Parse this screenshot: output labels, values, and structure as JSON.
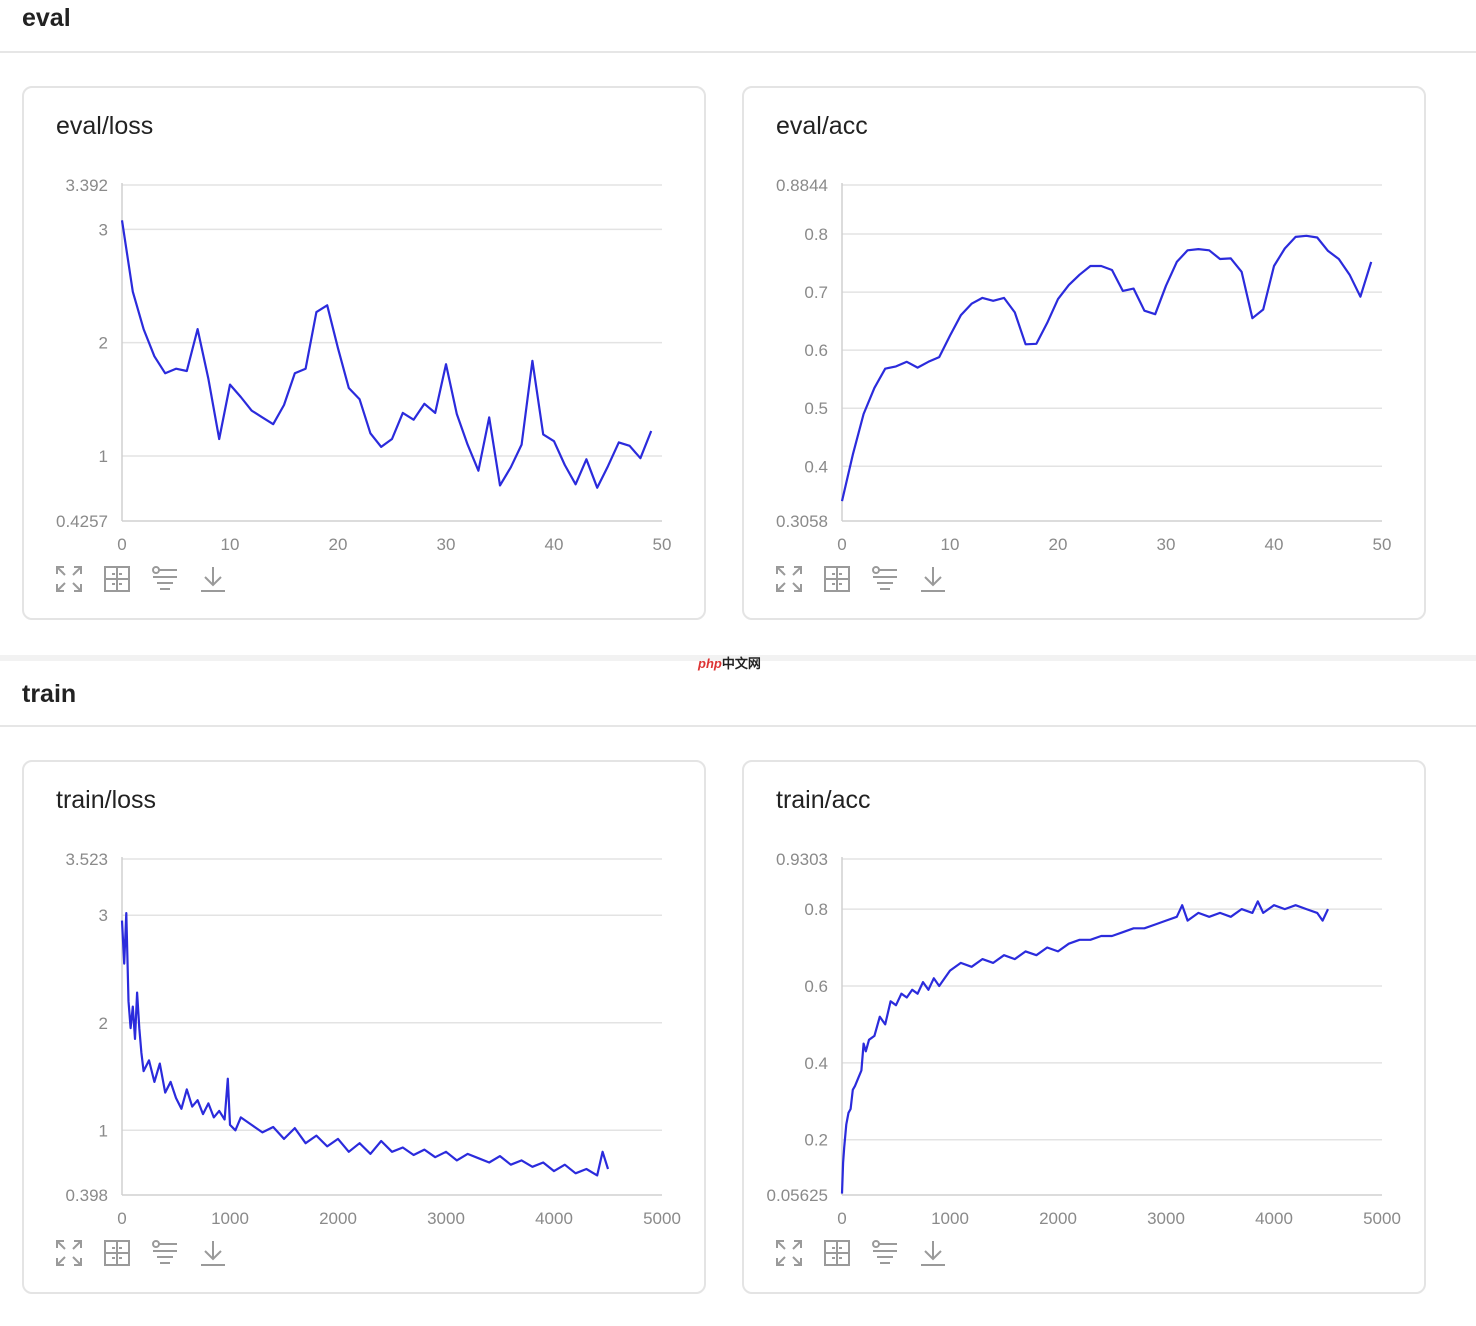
{
  "sections": [
    {
      "title": "eval"
    },
    {
      "title": "train"
    }
  ],
  "watermark": {
    "brand": "php",
    "suffix": "中文网"
  },
  "toolbar_icons": [
    "fullscreen-icon",
    "fit-view-icon",
    "filter-icon",
    "download-icon"
  ],
  "colors": {
    "line": "#2b2bdc",
    "grid": "#e3e3e3",
    "axis": "#d0d0d0",
    "tick": "#8a8a8a"
  },
  "chart_data": [
    {
      "id": "eval-loss",
      "type": "line",
      "title": "eval/loss",
      "xlim": [
        0,
        50
      ],
      "ylim": [
        0.4257,
        3.392
      ],
      "xticks": [
        0,
        10,
        20,
        30,
        40,
        50
      ],
      "yticks": [
        {
          "value": 3.392,
          "label": "3.392"
        },
        {
          "value": 3,
          "label": "3"
        },
        {
          "value": 2,
          "label": "2"
        },
        {
          "value": 1,
          "label": "1"
        },
        {
          "value": 0.4257,
          "label": "0.4257"
        }
      ],
      "series": [
        {
          "name": "eval/loss",
          "x": [
            0,
            1,
            2,
            3,
            4,
            5,
            6,
            7,
            8,
            9,
            10,
            11,
            12,
            13,
            14,
            15,
            16,
            17,
            18,
            19,
            20,
            21,
            22,
            23,
            24,
            25,
            26,
            27,
            28,
            29,
            30,
            31,
            32,
            33,
            34,
            35,
            36,
            37,
            38,
            39,
            40,
            41,
            42,
            43,
            44,
            45,
            46,
            47,
            48,
            49
          ],
          "values": [
            3.08,
            2.45,
            2.12,
            1.88,
            1.73,
            1.77,
            1.75,
            2.12,
            1.68,
            1.15,
            1.63,
            1.52,
            1.4,
            1.34,
            1.28,
            1.45,
            1.73,
            1.77,
            2.27,
            2.33,
            1.95,
            1.6,
            1.5,
            1.2,
            1.08,
            1.15,
            1.38,
            1.32,
            1.46,
            1.38,
            1.81,
            1.37,
            1.1,
            0.87,
            1.34,
            0.74,
            0.9,
            1.1,
            1.84,
            1.19,
            1.13,
            0.92,
            0.75,
            0.97,
            0.72,
            0.91,
            1.12,
            1.09,
            0.98,
            1.22
          ]
        }
      ]
    },
    {
      "id": "eval-acc",
      "type": "line",
      "title": "eval/acc",
      "xlim": [
        0,
        50
      ],
      "ylim": [
        0.3058,
        0.8844
      ],
      "xticks": [
        0,
        10,
        20,
        30,
        40,
        50
      ],
      "yticks": [
        {
          "value": 0.8844,
          "label": "0.8844"
        },
        {
          "value": 0.8,
          "label": "0.8"
        },
        {
          "value": 0.7,
          "label": "0.7"
        },
        {
          "value": 0.6,
          "label": "0.6"
        },
        {
          "value": 0.5,
          "label": "0.5"
        },
        {
          "value": 0.4,
          "label": "0.4"
        },
        {
          "value": 0.3058,
          "label": "0.3058"
        }
      ],
      "series": [
        {
          "name": "eval/acc",
          "x": [
            0,
            1,
            2,
            3,
            4,
            5,
            6,
            7,
            8,
            9,
            10,
            11,
            12,
            13,
            14,
            15,
            16,
            17,
            18,
            19,
            20,
            21,
            22,
            23,
            24,
            25,
            26,
            27,
            28,
            29,
            30,
            31,
            32,
            33,
            34,
            35,
            36,
            37,
            38,
            39,
            40,
            41,
            42,
            43,
            44,
            45,
            46,
            47,
            48,
            49
          ],
          "values": [
            0.34,
            0.42,
            0.49,
            0.535,
            0.568,
            0.572,
            0.58,
            0.57,
            0.58,
            0.588,
            0.625,
            0.66,
            0.68,
            0.69,
            0.685,
            0.69,
            0.665,
            0.61,
            0.611,
            0.647,
            0.688,
            0.712,
            0.73,
            0.745,
            0.745,
            0.738,
            0.702,
            0.706,
            0.668,
            0.662,
            0.711,
            0.752,
            0.772,
            0.774,
            0.772,
            0.757,
            0.758,
            0.735,
            0.655,
            0.67,
            0.745,
            0.775,
            0.795,
            0.797,
            0.794,
            0.771,
            0.757,
            0.73,
            0.692,
            0.752
          ]
        }
      ]
    },
    {
      "id": "train-loss",
      "type": "line",
      "title": "train/loss",
      "xlim": [
        0,
        5000
      ],
      "ylim": [
        0.398,
        3.523
      ],
      "xticks": [
        0,
        1000,
        2000,
        3000,
        4000,
        5000
      ],
      "yticks": [
        {
          "value": 3.523,
          "label": "3.523"
        },
        {
          "value": 3,
          "label": "3"
        },
        {
          "value": 2,
          "label": "2"
        },
        {
          "value": 1,
          "label": "1"
        },
        {
          "value": 0.398,
          "label": "0.398"
        }
      ],
      "series": [
        {
          "name": "train/loss",
          "x": [
            0,
            20,
            40,
            60,
            80,
            100,
            120,
            140,
            160,
            180,
            200,
            250,
            300,
            350,
            400,
            450,
            500,
            550,
            600,
            650,
            700,
            750,
            800,
            850,
            900,
            950,
            980,
            1000,
            1050,
            1100,
            1200,
            1300,
            1400,
            1500,
            1600,
            1700,
            1800,
            1900,
            2000,
            2100,
            2200,
            2300,
            2400,
            2500,
            2600,
            2700,
            2800,
            2900,
            3000,
            3100,
            3200,
            3300,
            3400,
            3500,
            3600,
            3700,
            3800,
            3900,
            4000,
            4100,
            4200,
            4300,
            4400,
            4450,
            4500
          ],
          "values": [
            2.95,
            2.55,
            3.02,
            2.2,
            1.95,
            2.15,
            1.85,
            2.28,
            1.95,
            1.72,
            1.55,
            1.65,
            1.45,
            1.62,
            1.35,
            1.45,
            1.3,
            1.2,
            1.38,
            1.22,
            1.28,
            1.15,
            1.25,
            1.12,
            1.18,
            1.1,
            1.48,
            1.05,
            1.0,
            1.12,
            1.05,
            0.98,
            1.03,
            0.92,
            1.02,
            0.88,
            0.95,
            0.85,
            0.92,
            0.8,
            0.88,
            0.78,
            0.9,
            0.8,
            0.84,
            0.77,
            0.82,
            0.75,
            0.8,
            0.72,
            0.78,
            0.74,
            0.7,
            0.76,
            0.68,
            0.72,
            0.66,
            0.7,
            0.62,
            0.68,
            0.6,
            0.64,
            0.58,
            0.8,
            0.64
          ]
        }
      ]
    },
    {
      "id": "train-acc",
      "type": "line",
      "title": "train/acc",
      "xlim": [
        0,
        5000
      ],
      "ylim": [
        0.05625,
        0.9303
      ],
      "xticks": [
        0,
        1000,
        2000,
        3000,
        4000,
        5000
      ],
      "yticks": [
        {
          "value": 0.9303,
          "label": "0.9303"
        },
        {
          "value": 0.8,
          "label": "0.8"
        },
        {
          "value": 0.6,
          "label": "0.6"
        },
        {
          "value": 0.4,
          "label": "0.4"
        },
        {
          "value": 0.2,
          "label": "0.2"
        },
        {
          "value": 0.05625,
          "label": "0.05625"
        }
      ],
      "series": [
        {
          "name": "train/acc",
          "x": [
            0,
            10,
            20,
            40,
            60,
            80,
            100,
            120,
            150,
            180,
            200,
            220,
            250,
            300,
            350,
            400,
            450,
            500,
            550,
            600,
            650,
            700,
            750,
            800,
            850,
            900,
            950,
            1000,
            1100,
            1200,
            1300,
            1400,
            1500,
            1600,
            1700,
            1800,
            1900,
            2000,
            2100,
            2200,
            2300,
            2400,
            2500,
            2600,
            2700,
            2800,
            2900,
            3000,
            3100,
            3150,
            3200,
            3300,
            3400,
            3500,
            3600,
            3700,
            3800,
            3850,
            3900,
            4000,
            4100,
            4200,
            4300,
            4400,
            4450,
            4500
          ],
          "values": [
            0.06,
            0.14,
            0.18,
            0.24,
            0.27,
            0.28,
            0.33,
            0.34,
            0.36,
            0.38,
            0.45,
            0.43,
            0.46,
            0.47,
            0.52,
            0.5,
            0.56,
            0.55,
            0.58,
            0.57,
            0.59,
            0.58,
            0.61,
            0.59,
            0.62,
            0.6,
            0.62,
            0.64,
            0.66,
            0.65,
            0.67,
            0.66,
            0.68,
            0.67,
            0.69,
            0.68,
            0.7,
            0.69,
            0.71,
            0.72,
            0.72,
            0.73,
            0.73,
            0.74,
            0.75,
            0.75,
            0.76,
            0.77,
            0.78,
            0.81,
            0.77,
            0.79,
            0.78,
            0.79,
            0.78,
            0.8,
            0.79,
            0.82,
            0.79,
            0.81,
            0.8,
            0.81,
            0.8,
            0.79,
            0.77,
            0.8
          ]
        }
      ]
    }
  ]
}
